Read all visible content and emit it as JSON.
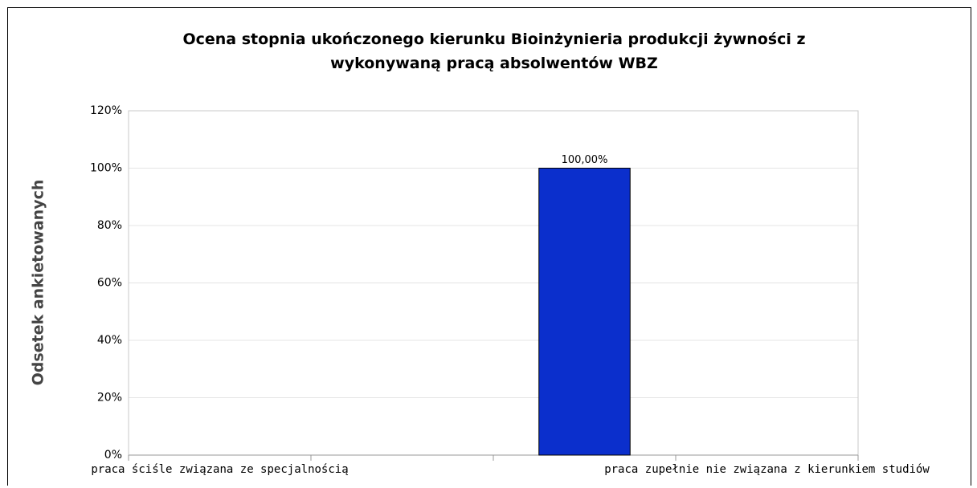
{
  "chart_data": {
    "type": "bar",
    "title": "Ocena stopnia ukończonego kierunku Bioinżynieria produkcji żywności z wykonywaną pracą absolwentów WBZ",
    "y_label": "Odsetek ankietowanych",
    "categories": [
      "praca ściśle związana ze specjalnością",
      null,
      null,
      "praca zupełnie nie związana z kierunkiem studiów"
    ],
    "values": [
      0,
      0,
      100,
      0
    ],
    "value_labels": [
      null,
      null,
      "100,00%",
      null
    ],
    "color": "#0b2fcc",
    "ylim": [
      0,
      120
    ],
    "yticks": [
      {
        "value": 0,
        "label": "0%"
      },
      {
        "value": 20,
        "label": "20%"
      },
      {
        "value": 40,
        "label": "40%"
      },
      {
        "value": 60,
        "label": "60%"
      },
      {
        "value": 80,
        "label": "80%"
      },
      {
        "value": 100,
        "label": "100%"
      },
      {
        "value": 120,
        "label": "120%"
      }
    ],
    "grid": true
  }
}
